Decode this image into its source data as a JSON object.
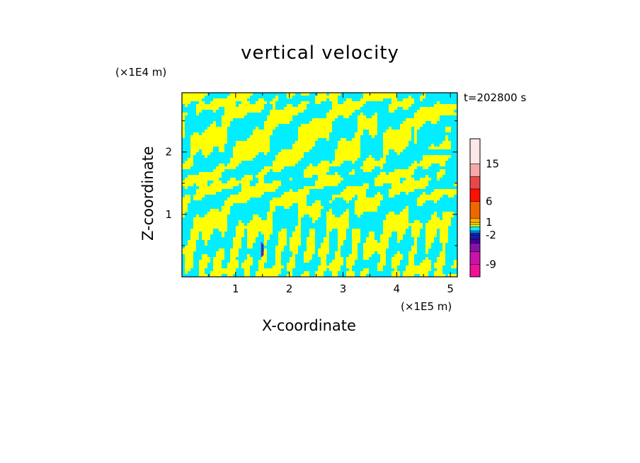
{
  "chart_data": {
    "type": "heatmap",
    "title": "vertical velocity",
    "xlabel": "X-coordinate",
    "ylabel": "Z-coordinate",
    "x_unit": "(×1E5 m)",
    "y_unit": "(×1E4 m)",
    "time_label": "t=202800 s",
    "xlim": [
      0,
      5.13
    ],
    "ylim": [
      0,
      2.95
    ],
    "x_ticks": [
      1,
      2,
      3,
      4,
      5
    ],
    "y_ticks": [
      1,
      2
    ],
    "colorbar": {
      "range": [
        -12,
        21
      ],
      "tick_labels": [
        15,
        6,
        1,
        -2,
        -9
      ],
      "levels": [
        {
          "lo": -12,
          "hi": -9,
          "color": "#ee1199"
        },
        {
          "lo": -9,
          "hi": -6,
          "color": "#cc11aa"
        },
        {
          "lo": -6,
          "hi": -4,
          "color": "#8811aa"
        },
        {
          "lo": -4,
          "hi": -3,
          "color": "#440099"
        },
        {
          "lo": -3,
          "hi": -2,
          "color": "#1a1aaa"
        },
        {
          "lo": -2,
          "hi": -1.5,
          "color": "#0033dd"
        },
        {
          "lo": -1.5,
          "hi": -1,
          "color": "#1e8fe8"
        },
        {
          "lo": -1,
          "hi": 0,
          "color": "#00eeff"
        },
        {
          "lo": 0,
          "hi": 0.5,
          "color": "#ffff00"
        },
        {
          "lo": 0.5,
          "hi": 1,
          "color": "#ffd400"
        },
        {
          "lo": 1,
          "hi": 2,
          "color": "#ffaa00"
        },
        {
          "lo": 2,
          "hi": 6,
          "color": "#ee6600"
        },
        {
          "lo": 6,
          "hi": 9,
          "color": "#ff1100"
        },
        {
          "lo": 9,
          "hi": 12,
          "color": "#e84848"
        },
        {
          "lo": 12,
          "hi": 15,
          "color": "#f5a9a9"
        },
        {
          "lo": 15,
          "hi": 21,
          "color": "#fde8e8"
        }
      ]
    },
    "field": {
      "dominant_colors": [
        "#00eeff",
        "#ffff00"
      ],
      "notes": "velocity field alternates between slightly negative (cyan) and slightly positive (yellow) bands; a thin dark updraft/downdraft pair near x=1.5"
    }
  }
}
